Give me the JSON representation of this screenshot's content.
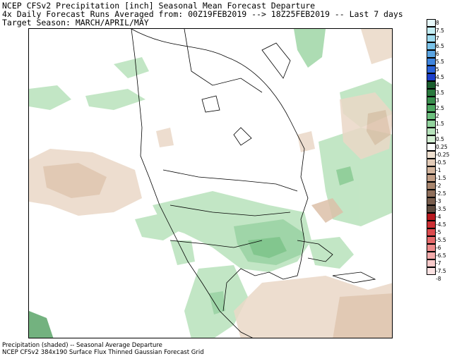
{
  "header": {
    "line1": "NCEP CFSv2 Precipitation [inch] Seasonal Mean Forecast Departure",
    "line2": "4x Daily Forecast Runs Averaged from: 00Z19FEB2019 --> 18Z25FEB2019 -- Last 7 days",
    "line3": "Target Season: MARCH/APRIL/MAY"
  },
  "footer": {
    "line1": "Precipitation (shaded) -- Seasonal Average Departure",
    "line2": "NCEP CFSv2 384x190 Surface Flux Thinned Gaussian Forecast Grid"
  },
  "colorbar": {
    "labels": [
      "8",
      "7.5",
      "7",
      "6.5",
      "6",
      "5.5",
      "5",
      "4.5",
      "4",
      "3.5",
      "3",
      "2.5",
      "2",
      "1.5",
      "1",
      "0.5",
      "0.25",
      "-0.25",
      "-0.5",
      "-1",
      "-1.5",
      "-2",
      "-2.5",
      "-3",
      "-3.5",
      "-4",
      "-4.5",
      "-5",
      "-5.5",
      "-6",
      "-6.5",
      "-7",
      "-7.5",
      "-8"
    ],
    "colors": [
      "#e6f8fa",
      "#c4eef4",
      "#9fdbef",
      "#7ac3e9",
      "#5aa4e2",
      "#3e84de",
      "#2a62d8",
      "#1c3fcb",
      "#1a5e2e",
      "#2a7a3e",
      "#3a8f4e",
      "#4ea862",
      "#6dc07e",
      "#92d39d",
      "#b6e3bb",
      "#d3efd3",
      "#ffffff",
      "#efe0d0",
      "#e3cbb7",
      "#d3b59e",
      "#c19e86",
      "#a8866e",
      "#8f6f5b",
      "#775c4c",
      "#5d4a3e",
      "#b8191f",
      "#cc2f34",
      "#dc4a4d",
      "#e66a6b",
      "#ee8c8c",
      "#f3abab",
      "#f8c9c9",
      "#fbe2e2"
    ]
  }
}
